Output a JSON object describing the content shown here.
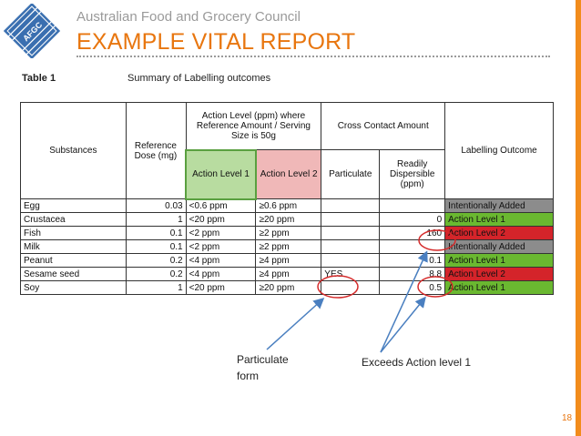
{
  "header": {
    "organization": "Australian Food and Grocery Council",
    "title": "EXAMPLE VITAL REPORT",
    "logo_text": "AFGC"
  },
  "table": {
    "label": "Table 1",
    "caption": "Summary of Labelling outcomes",
    "headers": {
      "substances": "Substances",
      "reference_dose": "Reference Dose (mg)",
      "action_level_group": "Action Level (ppm) where Reference Amount / Serving Size is 50g",
      "action_level_1": "Action Level 1",
      "action_level_2": "Action Level 2",
      "cross_contact": "Cross Contact Amount",
      "particulate": "Particulate",
      "readily_dispersible": "Readily Dispersible (ppm)",
      "labelling_outcome": "Labelling Outcome"
    },
    "rows": [
      {
        "substance": "Egg",
        "dose": "0.03",
        "al1": "<0.6 ppm",
        "al2": "≥0.6 ppm",
        "particulate": "",
        "dispersible": "",
        "outcome": "Intentionally Added"
      },
      {
        "substance": "Crustacea",
        "dose": "1",
        "al1": "<20 ppm",
        "al2": "≥20 ppm",
        "particulate": "",
        "dispersible": "0",
        "outcome": "Action Level 1"
      },
      {
        "substance": "Fish",
        "dose": "0.1",
        "al1": "<2 ppm",
        "al2": "≥2 ppm",
        "particulate": "",
        "dispersible": "160",
        "outcome": "Action Level 2"
      },
      {
        "substance": "Milk",
        "dose": "0.1",
        "al1": "<2 ppm",
        "al2": "≥2 ppm",
        "particulate": "",
        "dispersible": "",
        "outcome": "Intentionally Added"
      },
      {
        "substance": "Peanut",
        "dose": "0.2",
        "al1": "<4 ppm",
        "al2": "≥4 ppm",
        "particulate": "",
        "dispersible": "0.1",
        "outcome": "Action Level 1"
      },
      {
        "substance": "Sesame seed",
        "dose": "0.2",
        "al1": "<4 ppm",
        "al2": "≥4 ppm",
        "particulate": "YES",
        "dispersible": "8.8",
        "outcome": "Action Level 2"
      },
      {
        "substance": "Soy",
        "dose": "1",
        "al1": "<20 ppm",
        "al2": "≥20 ppm",
        "particulate": "",
        "dispersible": "0.5",
        "outcome": "Action Level 1"
      }
    ]
  },
  "callouts": {
    "particulate_line1": "Particulate",
    "particulate_line2": "form",
    "exceeds": "Exceeds Action level 1"
  },
  "page_number": "18",
  "colors": {
    "accent_orange": "#e8760f",
    "outcome_intentional": "#8c8c8c",
    "outcome_level1": "#6ab830",
    "outcome_level2": "#d4242a",
    "annotation_blue": "#4a7fc0",
    "circle_red": "#d42a2a"
  }
}
